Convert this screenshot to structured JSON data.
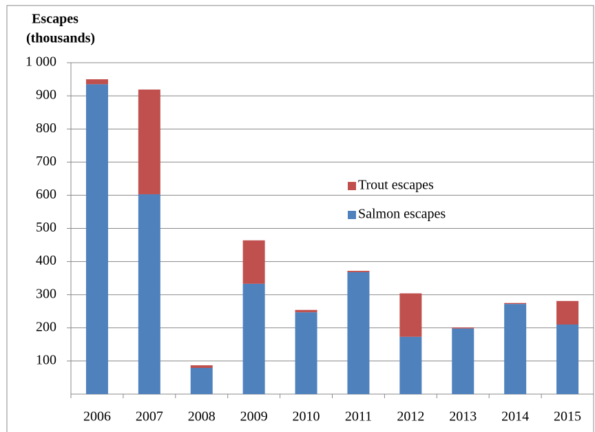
{
  "chart_data": {
    "type": "stacked_bar",
    "ylabel": [
      "Escapes",
      "(thousands)"
    ],
    "categories": [
      "2006",
      "2007",
      "2008",
      "2009",
      "2010",
      "2011",
      "2012",
      "2013",
      "2014",
      "2015"
    ],
    "series": [
      {
        "name": "Salmon escapes",
        "color": "#4f81bd",
        "values": [
          935,
          603,
          79,
          333,
          247,
          368,
          173,
          198,
          272,
          210
        ]
      },
      {
        "name": "Trout escapes",
        "color": "#c0504d",
        "values": [
          15,
          316,
          8,
          131,
          7,
          4,
          131,
          3,
          3,
          71
        ]
      }
    ],
    "ylim": [
      0,
      1000
    ],
    "yticks": [
      100,
      200,
      300,
      400,
      500,
      600,
      700,
      800,
      900,
      {
        "value": 1000,
        "label": "1 000"
      }
    ],
    "grid": true
  }
}
